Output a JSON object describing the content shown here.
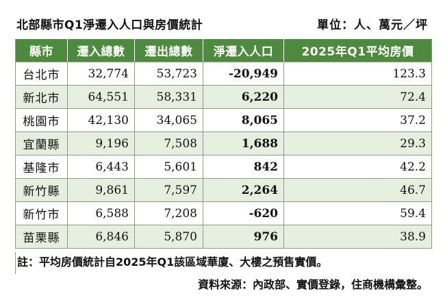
{
  "title": "北部縣市Q1淨遷入人口與房價統計",
  "unit": "單位：人、萬元／坪",
  "table": {
    "headers": [
      "縣市",
      "遷入總數",
      "遷出總數",
      "淨遷入人口",
      "2025年Q1平均房價"
    ],
    "rows": [
      {
        "city": "台北市",
        "in": "32,774",
        "out": "53,723",
        "net": "-20,949",
        "price": "123.3"
      },
      {
        "city": "新北市",
        "in": "64,551",
        "out": "58,331",
        "net": "6,220",
        "price": "72.4"
      },
      {
        "city": "桃園市",
        "in": "42,130",
        "out": "34,065",
        "net": "8,065",
        "price": "37.2"
      },
      {
        "city": "宜蘭縣",
        "in": "9,196",
        "out": "7,508",
        "net": "1,688",
        "price": "29.3"
      },
      {
        "city": "基隆市",
        "in": "6,443",
        "out": "5,601",
        "net": "842",
        "price": "42.2"
      },
      {
        "city": "新竹縣",
        "in": "9,861",
        "out": "7,597",
        "net": "2,264",
        "price": "46.7"
      },
      {
        "city": "新竹市",
        "in": "6,588",
        "out": "7,208",
        "net": "-620",
        "price": "59.4"
      },
      {
        "city": "苗栗縣",
        "in": "6,846",
        "out": "5,870",
        "net": "976",
        "price": "38.9"
      }
    ]
  },
  "note": "註：平均房價統計自2025年Q1該區域華廈、大樓之預售實價。",
  "source": "資料來源：內政部、實價登錄，住商機構彙整。",
  "colors": {
    "header_bg": "#4e8b3e",
    "alt_row_bg": "#e6efdf"
  }
}
